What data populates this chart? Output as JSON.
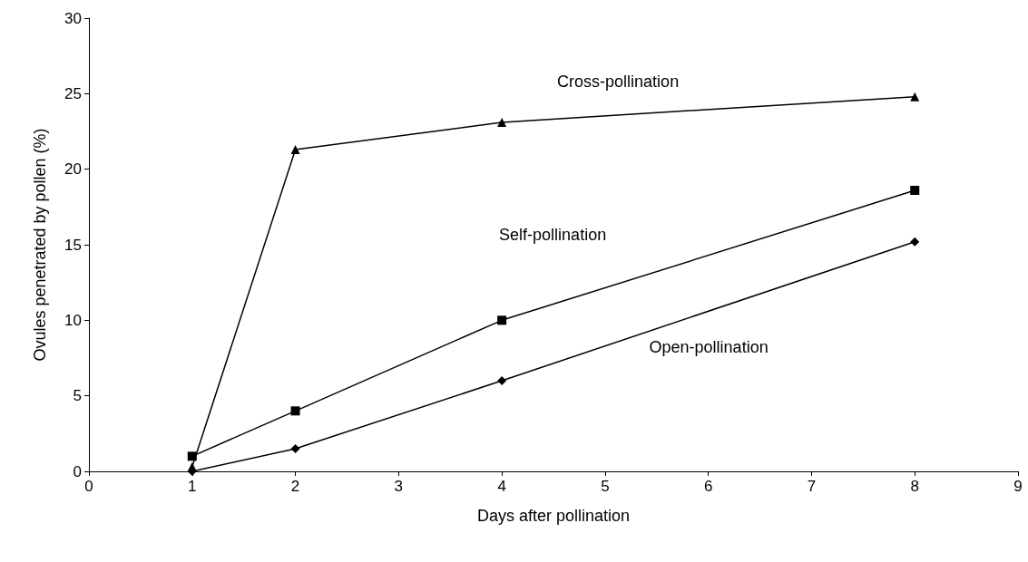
{
  "chart_data": {
    "type": "line",
    "xlabel": "Days after pollination",
    "ylabel": "Ovules penetrated by pollen (%)",
    "xlim": [
      0,
      9
    ],
    "xticks": [
      0,
      1,
      2,
      3,
      4,
      5,
      6,
      7,
      8,
      9
    ],
    "ylim": [
      0,
      30
    ],
    "yticks": [
      0,
      5,
      10,
      15,
      20,
      25,
      30
    ],
    "grid": false,
    "line_style": "solid",
    "x": [
      1,
      2,
      4,
      8
    ],
    "series": [
      {
        "name": "Cross-pollination",
        "color": "#000000",
        "marker": "triangle",
        "values": [
          0.3,
          21.3,
          23.1,
          24.8
        ]
      },
      {
        "name": "Self-pollination",
        "color": "#000000",
        "marker": "square",
        "values": [
          1,
          4,
          10,
          18.6
        ]
      },
      {
        "name": "Open-pollination",
        "color": "#000000",
        "marker": "diamond",
        "values": [
          0,
          1.5,
          6,
          15.2
        ]
      }
    ]
  }
}
